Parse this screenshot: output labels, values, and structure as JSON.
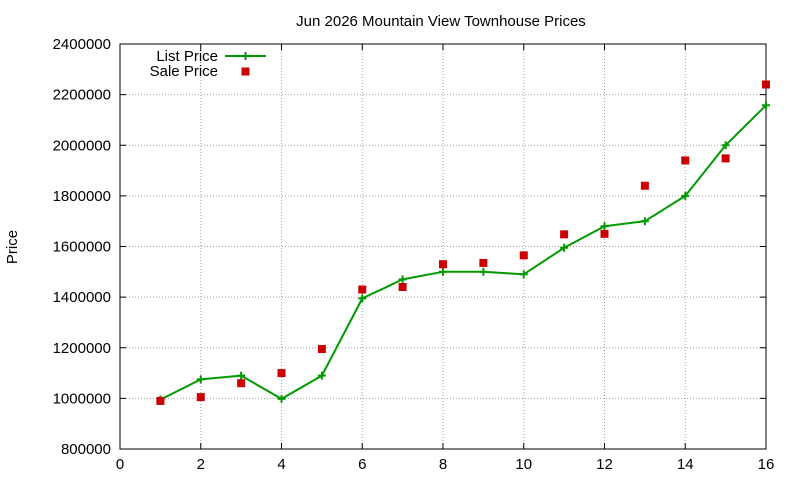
{
  "chart_data": {
    "type": "line",
    "title": "Jun 2026 Mountain View Townhouse Prices",
    "xlabel": "",
    "ylabel": "Price",
    "xlim": [
      0,
      16
    ],
    "ylim": [
      800000,
      2400000
    ],
    "xticks": [
      0,
      2,
      4,
      6,
      8,
      10,
      12,
      14,
      16
    ],
    "yticks": [
      800000,
      1000000,
      1200000,
      1400000,
      1600000,
      1800000,
      2000000,
      2200000,
      2400000
    ],
    "grid": true,
    "legend_position": "top-left",
    "series": [
      {
        "name": "List Price",
        "style": "line-with-plus-markers",
        "color": "#009900",
        "x": [
          1,
          2,
          3,
          4,
          5,
          6,
          7,
          8,
          9,
          10,
          11,
          12,
          13,
          14,
          15,
          16
        ],
        "values": [
          995000,
          1075000,
          1090000,
          998000,
          1090000,
          1395000,
          1470000,
          1500000,
          1500000,
          1490000,
          1595000,
          1680000,
          1700000,
          1800000,
          2000000,
          2158000
        ]
      },
      {
        "name": "Sale Price",
        "style": "square-markers",
        "color": "#cc0000",
        "x": [
          1,
          2,
          3,
          4,
          5,
          6,
          7,
          8,
          9,
          10,
          11,
          12,
          13,
          14,
          15,
          16
        ],
        "values": [
          990000,
          1005000,
          1060000,
          1100000,
          1195000,
          1430000,
          1440000,
          1530000,
          1535000,
          1565000,
          1648000,
          1650000,
          1840000,
          1940000,
          1948000,
          2240000
        ]
      }
    ]
  }
}
